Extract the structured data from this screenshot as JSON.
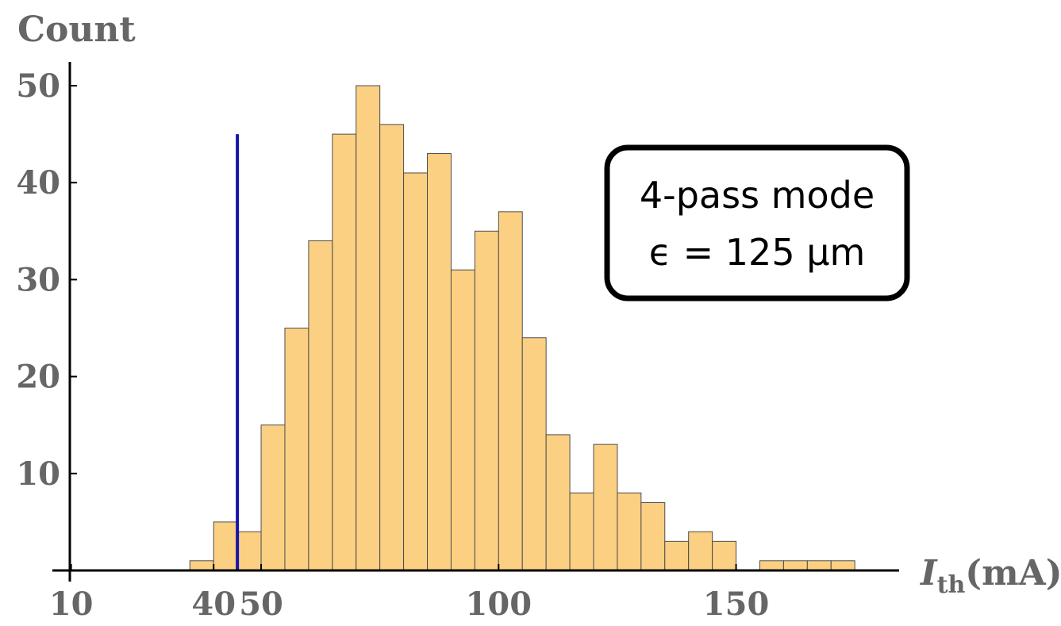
{
  "chart_data": {
    "type": "bar",
    "subtype": "histogram",
    "ylabel": "Count",
    "xlabel": {
      "symbol": "I",
      "subscript": "th",
      "unit": "(mA)"
    },
    "xlim": [
      0,
      172
    ],
    "ylim": [
      0,
      52
    ],
    "x_ticks": [
      10,
      40,
      50,
      100,
      150
    ],
    "y_ticks": [
      10,
      20,
      30,
      40,
      50
    ],
    "bin_width": 5,
    "bins": [
      {
        "start": 35,
        "end": 40,
        "value": 1
      },
      {
        "start": 40,
        "end": 45,
        "value": 5
      },
      {
        "start": 45,
        "end": 50,
        "value": 4
      },
      {
        "start": 50,
        "end": 55,
        "value": 15
      },
      {
        "start": 55,
        "end": 60,
        "value": 25
      },
      {
        "start": 60,
        "end": 65,
        "value": 34
      },
      {
        "start": 65,
        "end": 70,
        "value": 45
      },
      {
        "start": 70,
        "end": 75,
        "value": 50
      },
      {
        "start": 75,
        "end": 80,
        "value": 46
      },
      {
        "start": 80,
        "end": 85,
        "value": 41
      },
      {
        "start": 85,
        "end": 90,
        "value": 43
      },
      {
        "start": 90,
        "end": 95,
        "value": 31
      },
      {
        "start": 95,
        "end": 100,
        "value": 35
      },
      {
        "start": 100,
        "end": 105,
        "value": 37
      },
      {
        "start": 105,
        "end": 110,
        "value": 24
      },
      {
        "start": 110,
        "end": 115,
        "value": 14
      },
      {
        "start": 115,
        "end": 120,
        "value": 8
      },
      {
        "start": 120,
        "end": 125,
        "value": 13
      },
      {
        "start": 125,
        "end": 130,
        "value": 8
      },
      {
        "start": 130,
        "end": 135,
        "value": 7
      },
      {
        "start": 135,
        "end": 140,
        "value": 3
      },
      {
        "start": 140,
        "end": 145,
        "value": 4
      },
      {
        "start": 145,
        "end": 150,
        "value": 3
      },
      {
        "start": 155,
        "end": 160,
        "value": 1
      },
      {
        "start": 160,
        "end": 165,
        "value": 1
      },
      {
        "start": 165,
        "end": 170,
        "value": 1
      },
      {
        "start": 170,
        "end": 175,
        "value": 1
      }
    ],
    "threshold_line": {
      "x": 45,
      "y_top": 45,
      "color": "#1414a8"
    },
    "bar_color": "#fcd083",
    "bar_edge_color": "#4d4d4d",
    "annotation": {
      "line1": "4-pass mode",
      "line2": "ϵ = 125 μm",
      "placement": "top-right"
    }
  }
}
